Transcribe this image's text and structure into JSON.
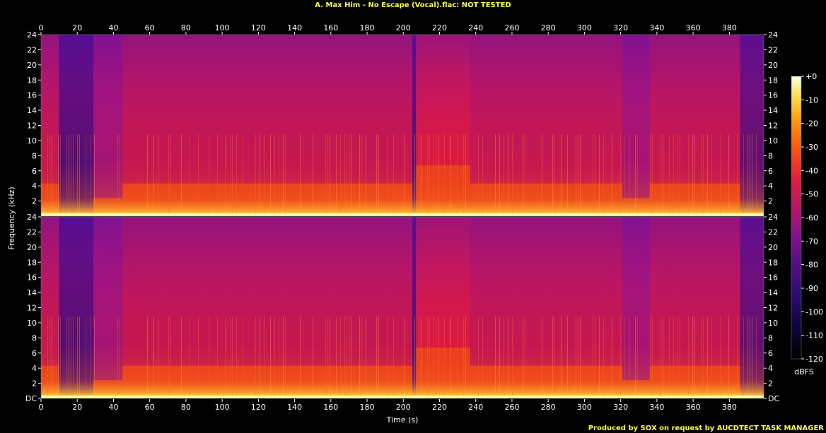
{
  "chart_data": {
    "type": "heatmap",
    "title": "A. Max Him - No Escape (Vocal).flac: NOT TESTED",
    "footer": "Produced by SOX on request by AUCDTECT TASK MANAGER",
    "xlabel": "Time (s)",
    "ylabel": "Frequency (kHz)",
    "xlim": [
      0,
      399
    ],
    "ylim": [
      0,
      24
    ],
    "x_ticks": [
      "0",
      "20",
      "40",
      "60",
      "80",
      "100",
      "120",
      "140",
      "160",
      "180",
      "200",
      "220",
      "240",
      "260",
      "280",
      "300",
      "320",
      "340",
      "360",
      "380"
    ],
    "y_ticks": [
      "DC",
      "2",
      "4",
      "6",
      "8",
      "10",
      "12",
      "14",
      "16",
      "18",
      "20",
      "22",
      "24"
    ],
    "channels": 2,
    "colorbar": {
      "label": "dBFS",
      "ticks": [
        "+0",
        "-10",
        "-20",
        "-30",
        "-40",
        "-50",
        "-60",
        "-70",
        "-80",
        "-90",
        "-100",
        "-110",
        "-120"
      ],
      "range": [
        -120,
        0
      ]
    },
    "segments": [
      {
        "start": 0,
        "end": 10,
        "level": "loud"
      },
      {
        "start": 10,
        "end": 29,
        "level": "quiet"
      },
      {
        "start": 29,
        "end": 45,
        "level": "medium"
      },
      {
        "start": 45,
        "end": 205,
        "level": "loud"
      },
      {
        "start": 205,
        "end": 207,
        "level": "quiet"
      },
      {
        "start": 207,
        "end": 237,
        "level": "very-loud"
      },
      {
        "start": 237,
        "end": 321,
        "level": "loud"
      },
      {
        "start": 321,
        "end": 336,
        "level": "medium"
      },
      {
        "start": 336,
        "end": 386,
        "level": "loud"
      },
      {
        "start": 386,
        "end": 399,
        "level": "fade"
      }
    ]
  }
}
